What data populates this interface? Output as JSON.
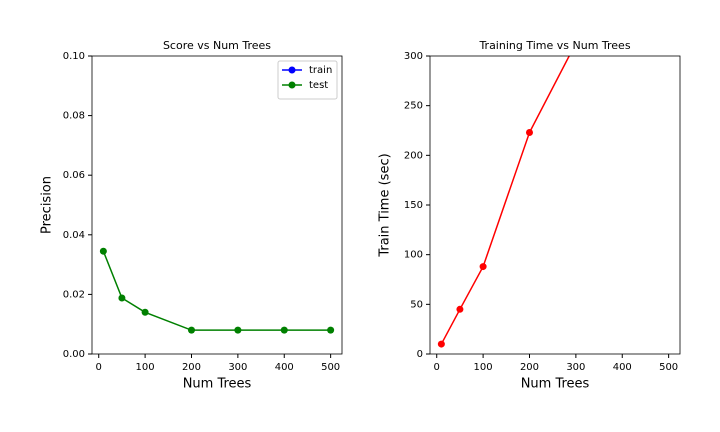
{
  "chart_data": [
    {
      "type": "line",
      "title": "Score vs Num Trees",
      "x_label": "Num Trees",
      "y_label": "Precision",
      "x": [
        10,
        50,
        100,
        200,
        300,
        400,
        500
      ],
      "series": [
        {
          "name": "train",
          "color": "#0000ff",
          "values": [
            null,
            null,
            null,
            null,
            null,
            null,
            null
          ]
        },
        {
          "name": "test",
          "color": "#008000",
          "values": [
            0.0345,
            0.0188,
            0.014,
            0.008,
            0.008,
            0.008,
            0.008
          ]
        }
      ],
      "xlim": [
        -14.5,
        524.5
      ],
      "ylim": [
        0,
        0.1
      ],
      "xticks": [
        0,
        100,
        200,
        300,
        400,
        500
      ],
      "yticks": [
        {
          "value": 0,
          "label": "0.00"
        },
        {
          "value": 0.02,
          "label": "0.02"
        },
        {
          "value": 0.04,
          "label": "0.04"
        },
        {
          "value": 0.06,
          "label": "0.06"
        },
        {
          "value": 0.08,
          "label": "0.08"
        },
        {
          "value": 0.1,
          "label": "0.10"
        }
      ],
      "legend": "upper right"
    },
    {
      "type": "line",
      "title": "Training Time vs Num Trees",
      "x_label": "Num Trees",
      "y_label": "Train Time (sec)",
      "x": [
        10,
        50,
        100,
        200,
        300,
        400,
        500
      ],
      "series": [
        {
          "color": "#ff0000",
          "values": [
            10,
            45,
            88,
            223,
            313,
            null,
            null
          ]
        }
      ],
      "xlim": [
        -14.5,
        524.5
      ],
      "ylim": [
        0,
        300
      ],
      "xticks": [
        0,
        100,
        200,
        300,
        400,
        500
      ],
      "yticks": [
        0,
        50,
        100,
        150,
        200,
        250,
        300
      ]
    }
  ]
}
